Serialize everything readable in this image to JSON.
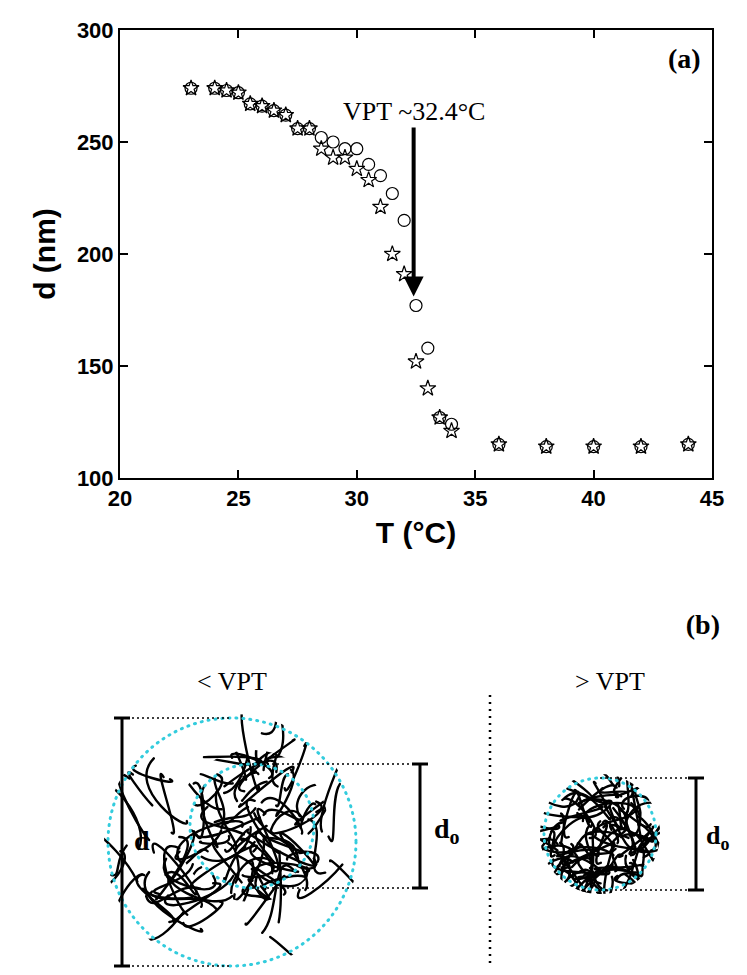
{
  "chart_data": {
    "type": "scatter",
    "panel_label": "(a)",
    "x_label": "T (°C)",
    "y_label": "d (nm)",
    "xlim": [
      20,
      45
    ],
    "xticks": [
      20,
      25,
      30,
      35,
      40,
      45
    ],
    "ylim": [
      100,
      300
    ],
    "yticks": [
      100,
      150,
      200,
      250,
      300
    ],
    "grid": false,
    "series": [
      {
        "marker": "circle",
        "color": "#000000",
        "x": [
          23,
          24,
          24.5,
          25,
          25.5,
          26,
          26.5,
          27,
          27.5,
          28,
          28.5,
          29,
          29.5,
          30,
          30.5,
          31,
          31.5,
          32,
          32.5,
          33,
          33.5,
          34,
          36,
          38,
          40,
          42,
          44
        ],
        "values": [
          274,
          274,
          273,
          272,
          267,
          266,
          264,
          262,
          256,
          256,
          252,
          250,
          247,
          247,
          240,
          235,
          227,
          215,
          177,
          158,
          127,
          124,
          115,
          114,
          114,
          114,
          115
        ]
      },
      {
        "marker": "star",
        "color": "#000000",
        "x": [
          23,
          24,
          24.5,
          25,
          25.5,
          26,
          26.5,
          27,
          27.5,
          28,
          28.5,
          29,
          29.5,
          30,
          30.5,
          31,
          31.5,
          32,
          32.5,
          33,
          33.5,
          34,
          36,
          38,
          40,
          42,
          44
        ],
        "values": [
          274,
          274,
          273,
          272,
          267,
          266,
          264,
          262,
          256,
          256,
          247,
          243,
          243,
          238,
          233,
          221,
          200,
          191,
          152,
          140,
          127,
          121,
          115,
          114,
          114,
          114,
          115
        ]
      }
    ],
    "annotations": [
      {
        "text": "VPT ~32.4°C",
        "x": 32.4,
        "y": 181
      }
    ]
  },
  "diagram": {
    "panel_label": "(b)",
    "left": {
      "title": "< VPT",
      "outer_label": "d",
      "inner_label": {
        "text": "d",
        "subscript": "o"
      }
    },
    "right": {
      "title": "> VPT",
      "label": {
        "text": "d",
        "subscript": "o"
      }
    }
  }
}
